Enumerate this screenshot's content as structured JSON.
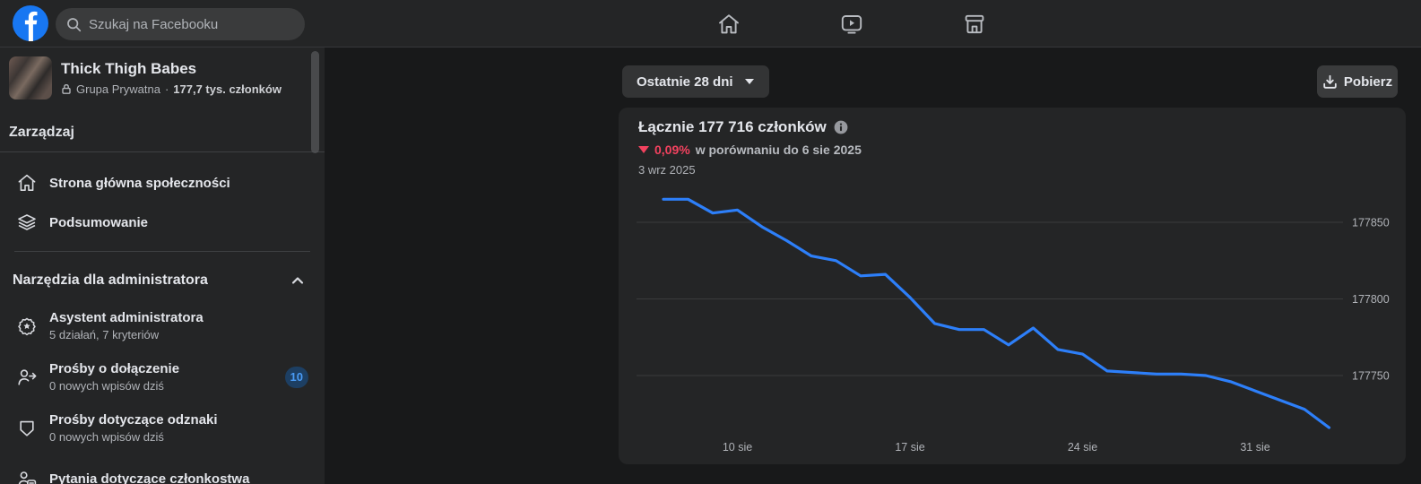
{
  "topbar": {
    "search": {
      "placeholder": "Szukaj na Facebooku",
      "icon": "search-icon"
    },
    "logo_icon": "facebook-logo",
    "nav": [
      {
        "icon": "home-nav-icon"
      },
      {
        "icon": "watch-nav-icon"
      },
      {
        "icon": "marketplace-nav-icon"
      }
    ]
  },
  "sidebar": {
    "group": {
      "name": "Thick Thigh Babes",
      "privacy": "Grupa Prywatna",
      "separator": "·",
      "members": "177,7 tys. członków",
      "privacy_icon": "lock-icon"
    },
    "section_label": "Zarządzaj",
    "items": [
      {
        "label": "Strona główna społeczności",
        "icon": "home-icon"
      },
      {
        "label": "Podsumowanie",
        "icon": "layers-icon"
      }
    ],
    "admin_tools": {
      "label": "Narzędzia dla administratora",
      "collapse_icon": "chevron-up-icon",
      "items": [
        {
          "label": "Asystent administratora",
          "sublabel": "5 działań, 7 kryteriów",
          "icon": "admin-assistant-icon"
        },
        {
          "label": "Prośby o dołączenie",
          "sublabel": "0 nowych wpisów dziś",
          "badge": "10",
          "icon": "member-add-icon"
        },
        {
          "label": "Prośby dotyczące odznaki",
          "sublabel": "0 nowych wpisów dziś",
          "icon": "badge-shield-icon"
        },
        {
          "label": "Pytania dotyczące członkostwa",
          "icon": "membership-question-icon"
        }
      ]
    }
  },
  "main": {
    "range_selector": {
      "label": "Ostatnie 28 dni",
      "icon": "caret-down-icon"
    },
    "download_button": {
      "label": "Pobierz",
      "icon": "download-icon"
    },
    "card": {
      "title": "Łącznie 177 716 członków",
      "info_icon": "info-icon",
      "delta_value": "0,09%",
      "delta_direction": "down",
      "delta_text": "w porównaniu do 6 sie 2025",
      "date": "3 wrz 2025"
    }
  },
  "colors": {
    "accent_blue": "#2d7ff9",
    "facebook_blue": "#1877f2",
    "negative_red": "#f3425f",
    "panel": "#242526",
    "background": "#18191a",
    "text_primary": "#e4e6eb",
    "text_secondary": "#b0b3b8",
    "gridline": "#3a3b3c"
  },
  "chart_data": {
    "type": "line",
    "title": "Łącznie 177 716 członków",
    "x": [
      "7 sie",
      "8 sie",
      "9 sie",
      "10 sie",
      "11 sie",
      "12 sie",
      "13 sie",
      "14 sie",
      "15 sie",
      "16 sie",
      "17 sie",
      "18 sie",
      "19 sie",
      "20 sie",
      "21 sie",
      "22 sie",
      "23 sie",
      "24 sie",
      "25 sie",
      "26 sie",
      "27 sie",
      "28 sie",
      "29 sie",
      "30 sie",
      "31 sie",
      "1 wrz",
      "2 wrz",
      "3 wrz"
    ],
    "values": [
      177865,
      177865,
      177856,
      177858,
      177847,
      177838,
      177828,
      177825,
      177815,
      177816,
      177801,
      177784,
      177780,
      177780,
      177770,
      177781,
      177767,
      177764,
      177753,
      177752,
      177751,
      177751,
      177750,
      177746,
      177740,
      177734,
      177728,
      177716
    ],
    "x_tick_labels": [
      "10 sie",
      "17 sie",
      "24 sie",
      "31 sie"
    ],
    "y_ticks": [
      177850,
      177800,
      177750
    ],
    "ylim": [
      177700,
      177890
    ],
    "xlabel": "",
    "ylabel": "",
    "legend": "none",
    "grid": "horizontal",
    "line_color": "#2d7ff9"
  }
}
